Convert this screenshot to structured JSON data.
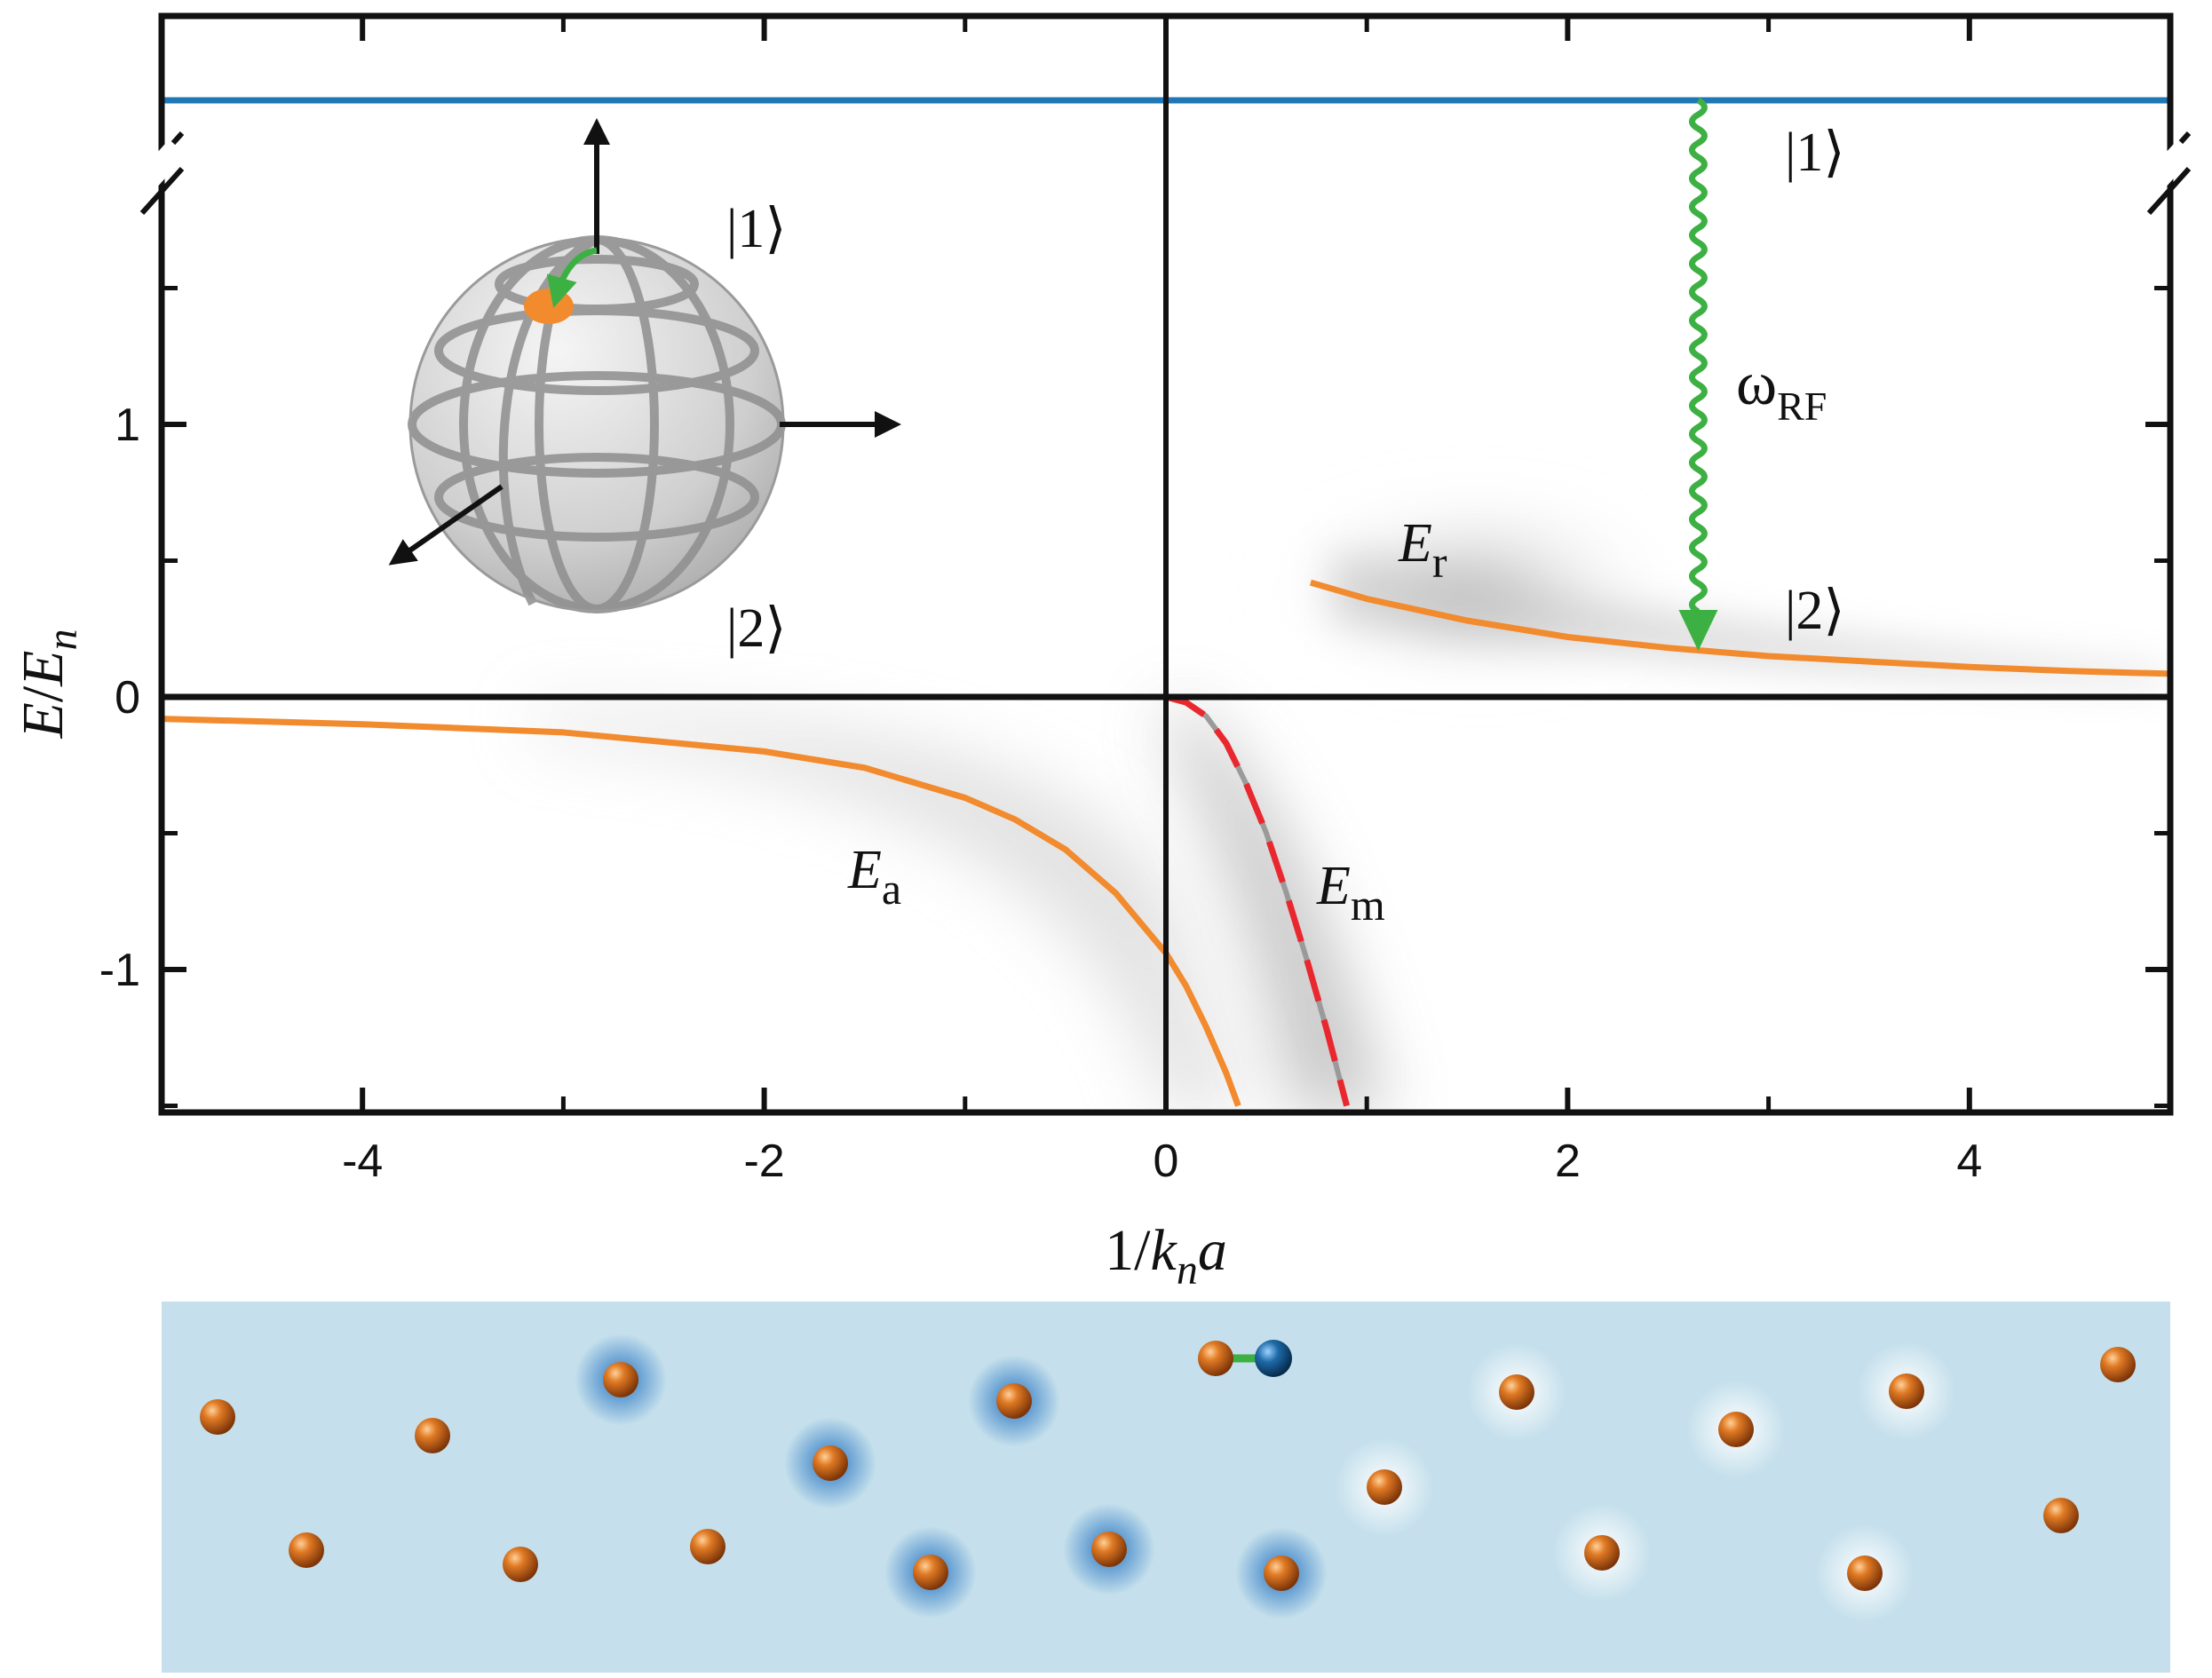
{
  "chart_data": {
    "type": "line",
    "xlabel": "1/k_n a",
    "ylabel": "E/E_n",
    "xlim": [
      -5,
      5
    ],
    "ylim": [
      -1.5,
      1.5
    ],
    "ybreak_top_level": "|1⟩",
    "x_ticks": [
      -4,
      -2,
      0,
      2,
      4
    ],
    "x_tick_labels": [
      "-4",
      "-2",
      "0",
      "2",
      "4"
    ],
    "y_ticks": [
      -1,
      0,
      1
    ],
    "y_tick_labels": [
      "-1",
      "0",
      "1"
    ],
    "grid": false,
    "series": [
      {
        "name": "E_a",
        "color": "#f28a2e",
        "style": "solid",
        "x": [
          -5,
          -4,
          -3,
          -2,
          -1.5,
          -1,
          -0.75,
          -0.5,
          -0.25,
          0,
          0.1,
          0.2,
          0.3,
          0.36
        ],
        "y": [
          -0.08,
          -0.1,
          -0.13,
          -0.2,
          -0.26,
          -0.37,
          -0.45,
          -0.56,
          -0.72,
          -0.94,
          -1.06,
          -1.21,
          -1.38,
          -1.5
        ]
      },
      {
        "name": "E_r",
        "color": "#f28a2e",
        "style": "solid",
        "x": [
          0.72,
          1.0,
          1.5,
          2.0,
          2.5,
          3.0,
          3.5,
          4.0,
          4.5,
          5.0
        ],
        "y": [
          0.42,
          0.36,
          0.28,
          0.22,
          0.18,
          0.15,
          0.13,
          0.11,
          0.095,
          0.085
        ]
      },
      {
        "name": "E_m",
        "color": "#e8282e",
        "style": "dashed",
        "x": [
          0,
          0.1,
          0.2,
          0.3,
          0.4,
          0.5,
          0.6,
          0.7,
          0.8,
          0.9
        ],
        "y": [
          0,
          -0.02,
          -0.07,
          -0.17,
          -0.32,
          -0.5,
          -0.72,
          -0.96,
          -1.22,
          -1.5
        ]
      }
    ],
    "levels": [
      {
        "label": "|1⟩",
        "color": "#1f78b4"
      }
    ],
    "annotations": {
      "ea": "E",
      "ea_sub": "a",
      "er": "E",
      "er_sub": "r",
      "em": "E",
      "em_sub": "m",
      "rf": "ω",
      "rf_sub": "RF",
      "ket1_right": "|1⟩",
      "ket2_right": "|2⟩",
      "ket1_sphere": "|1⟩",
      "ket2_sphere": "|2⟩"
    },
    "rf_transition_x": 2.65,
    "rf_transition_color": "#3db043",
    "xlabel_parts": {
      "a": "1/",
      "b": "k",
      "c": "n",
      "d": "a"
    },
    "ylabel_parts": {
      "a": "E",
      "b": "/",
      "c": "E",
      "d": "n"
    }
  },
  "bottom_panel": {
    "background": "#c5e0ec",
    "impurity_color": "#1a5a8a",
    "bond_color": "#3db043",
    "atom_color": "#d8691c"
  }
}
